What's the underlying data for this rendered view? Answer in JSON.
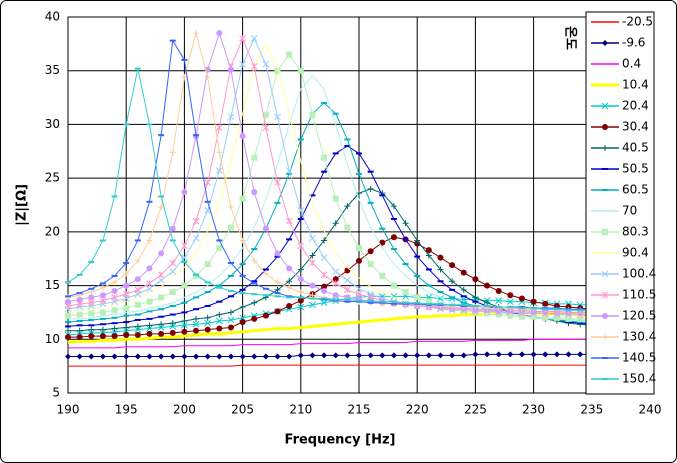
{
  "chart_data": {
    "type": "line",
    "xlabel": "Frequency [Hz]",
    "ylabel": "|Z|[Ω]",
    "legend_title": "온도",
    "legend_position": "right",
    "grid": true,
    "xlim": [
      190,
      240
    ],
    "xticks": [
      190,
      195,
      200,
      205,
      210,
      215,
      220,
      225,
      230,
      235,
      240
    ],
    "ylim": [
      5,
      40
    ],
    "yticks": [
      5,
      10,
      15,
      20,
      25,
      30,
      35,
      40
    ],
    "x": [
      190,
      191,
      192,
      193,
      194,
      195,
      196,
      197,
      198,
      199,
      200,
      201,
      202,
      203,
      204,
      205,
      206,
      207,
      208,
      209,
      210,
      211,
      212,
      213,
      214,
      215,
      216,
      217,
      218,
      219,
      220,
      221,
      222,
      223,
      224,
      225,
      226,
      227,
      228,
      229,
      230,
      231,
      232,
      233,
      234,
      235
    ],
    "series": [
      {
        "name": "-20.5",
        "color": "#ff0000",
        "marker": "none",
        "values": [
          7.5,
          7.5,
          7.5,
          7.5,
          7.5,
          7.5,
          7.5,
          7.5,
          7.5,
          7.5,
          7.5,
          7.5,
          7.5,
          7.5,
          7.5,
          7.6,
          7.6,
          7.6,
          7.6,
          7.6,
          7.6,
          7.6,
          7.6,
          7.6,
          7.6,
          7.6,
          7.6,
          7.6,
          7.6,
          7.6,
          7.6,
          7.6,
          7.6,
          7.6,
          7.6,
          7.6,
          7.6,
          7.6,
          7.6,
          7.6,
          7.6,
          7.6,
          7.6,
          7.6,
          7.6,
          7.6
        ]
      },
      {
        "name": "-9.6",
        "color": "#000080",
        "marker": "diamond",
        "values": [
          8.4,
          8.4,
          8.4,
          8.4,
          8.4,
          8.4,
          8.4,
          8.4,
          8.4,
          8.4,
          8.4,
          8.4,
          8.4,
          8.4,
          8.4,
          8.4,
          8.4,
          8.4,
          8.4,
          8.4,
          8.5,
          8.5,
          8.5,
          8.5,
          8.5,
          8.5,
          8.5,
          8.5,
          8.5,
          8.5,
          8.5,
          8.5,
          8.5,
          8.5,
          8.5,
          8.6,
          8.6,
          8.6,
          8.6,
          8.6,
          8.6,
          8.6,
          8.6,
          8.6,
          8.6,
          8.6
        ]
      },
      {
        "name": "0.4",
        "color": "#ff00ff",
        "marker": "none",
        "values": [
          9.2,
          9.2,
          9.2,
          9.2,
          9.2,
          9.3,
          9.3,
          9.3,
          9.3,
          9.3,
          9.4,
          9.4,
          9.4,
          9.4,
          9.4,
          9.5,
          9.5,
          9.5,
          9.5,
          9.5,
          9.6,
          9.6,
          9.6,
          9.6,
          9.6,
          9.7,
          9.7,
          9.7,
          9.7,
          9.7,
          9.8,
          9.8,
          9.8,
          9.8,
          9.8,
          9.9,
          9.9,
          9.9,
          9.9,
          9.9,
          10.0,
          10.0,
          10.0,
          10.0,
          10.0,
          10.0
        ]
      },
      {
        "name": "10.4",
        "color": "#ffff00",
        "marker": "none",
        "width": 3,
        "values": [
          9.7,
          9.8,
          9.8,
          9.9,
          9.9,
          10.0,
          10.0,
          10.1,
          10.2,
          10.2,
          10.3,
          10.4,
          10.5,
          10.5,
          10.6,
          10.7,
          10.8,
          10.9,
          11.0,
          11.0,
          11.1,
          11.2,
          11.3,
          11.4,
          11.5,
          11.6,
          11.7,
          11.8,
          11.9,
          12.0,
          12.1,
          12.1,
          12.2,
          12.2,
          12.3,
          12.3,
          12.4,
          12.4,
          12.4,
          12.5,
          12.5,
          12.4,
          12.4,
          12.4,
          12.3,
          12.3
        ]
      },
      {
        "name": "20.4",
        "color": "#00cccc",
        "marker": "x",
        "values": [
          10.4,
          10.5,
          10.6,
          10.6,
          10.7,
          10.8,
          10.9,
          11.0,
          11.1,
          11.2,
          11.3,
          11.4,
          11.5,
          11.7,
          11.8,
          12.0,
          12.2,
          12.4,
          12.6,
          12.8,
          13.0,
          13.2,
          13.4,
          13.6,
          13.8,
          13.9,
          14.0,
          14.0,
          14.0,
          14.0,
          13.9,
          13.9,
          13.8,
          13.8,
          13.7,
          13.7,
          13.6,
          13.6,
          13.5,
          13.5,
          13.4,
          13.4,
          13.3,
          13.3,
          13.2,
          13.2
        ]
      },
      {
        "name": "30.4",
        "color": "#800000",
        "marker": "circle",
        "values": [
          10.2,
          10.2,
          10.3,
          10.3,
          10.3,
          10.4,
          10.4,
          10.5,
          10.5,
          10.6,
          10.7,
          10.8,
          10.9,
          11.0,
          11.1,
          11.6,
          11.9,
          12.2,
          12.6,
          13.1,
          13.6,
          14.2,
          14.9,
          15.6,
          16.4,
          17.3,
          18.2,
          19.0,
          19.5,
          19.3,
          18.9,
          18.3,
          17.6,
          16.9,
          16.2,
          15.6,
          15.0,
          14.5,
          14.1,
          13.8,
          13.5,
          13.3,
          13.1,
          13.0,
          12.9,
          12.8
        ]
      },
      {
        "name": "40.5",
        "color": "#006666",
        "marker": "plus",
        "values": [
          10.8,
          10.8,
          10.9,
          10.9,
          11.0,
          11.1,
          11.2,
          11.3,
          11.4,
          11.5,
          11.7,
          11.9,
          12.0,
          12.3,
          12.5,
          13.0,
          13.4,
          13.9,
          14.6,
          15.4,
          16.5,
          17.8,
          19.2,
          20.8,
          22.4,
          23.6,
          24.0,
          23.6,
          22.4,
          20.8,
          19.2,
          17.8,
          16.5,
          15.4,
          14.6,
          13.9,
          13.4,
          13.0,
          12.5,
          12.3,
          12.0,
          11.9,
          11.7,
          11.5,
          11.4,
          11.3
        ]
      },
      {
        "name": "50.5",
        "color": "#0000cc",
        "marker": "dash",
        "values": [
          11.2,
          11.3,
          11.3,
          11.4,
          11.5,
          11.6,
          11.8,
          11.9,
          12.1,
          12.3,
          12.5,
          12.8,
          13.1,
          13.5,
          14.0,
          14.6,
          15.4,
          16.5,
          17.7,
          19.3,
          21.2,
          23.4,
          25.6,
          27.3,
          28.0,
          27.3,
          25.6,
          23.4,
          21.2,
          19.3,
          17.7,
          16.5,
          15.4,
          14.6,
          14.0,
          13.5,
          13.1,
          12.8,
          12.5,
          12.3,
          12.1,
          11.9,
          11.8,
          11.6,
          11.5,
          11.4
        ]
      },
      {
        "name": "60.5",
        "color": "#00b0c0",
        "marker": "dash",
        "values": [
          11.6,
          11.7,
          11.8,
          11.9,
          12.0,
          12.2,
          12.3,
          12.6,
          12.8,
          13.1,
          13.4,
          13.9,
          14.4,
          15.0,
          15.9,
          17.0,
          18.4,
          20.3,
          22.7,
          25.4,
          28.6,
          31.0,
          32.0,
          31.0,
          28.6,
          25.4,
          22.7,
          20.3,
          18.4,
          17.0,
          15.9,
          15.0,
          14.4,
          13.9,
          13.4,
          13.1,
          12.8,
          12.6,
          12.3,
          12.2,
          12.0,
          11.9,
          11.8,
          11.7,
          11.6,
          11.6
        ]
      },
      {
        "name": "70",
        "color": "#b0eeee",
        "marker": "none",
        "values": [
          11.9,
          11.9,
          12.0,
          12.2,
          12.3,
          12.5,
          12.6,
          12.9,
          13.1,
          13.4,
          13.9,
          14.4,
          15.0,
          15.9,
          17.0,
          18.5,
          20.4,
          23.0,
          26.3,
          30.0,
          33.3,
          34.5,
          33.3,
          30.0,
          26.3,
          23.0,
          20.4,
          18.5,
          17.0,
          15.9,
          15.0,
          14.4,
          13.9,
          13.4,
          13.1,
          12.9,
          12.6,
          12.5,
          12.3,
          12.2,
          12.0,
          11.9,
          11.9,
          11.8,
          11.8,
          11.7
        ]
      },
      {
        "name": "80.3",
        "color": "#b8f0b8",
        "marker": "square",
        "values": [
          12.2,
          12.3,
          12.4,
          12.5,
          12.7,
          12.9,
          13.2,
          13.5,
          13.9,
          14.4,
          15.0,
          15.9,
          17.0,
          18.5,
          20.4,
          23.1,
          26.9,
          30.9,
          35.0,
          36.5,
          35.0,
          30.9,
          26.9,
          23.1,
          20.4,
          18.5,
          17.0,
          15.9,
          15.0,
          14.4,
          13.9,
          13.5,
          13.2,
          12.9,
          12.7,
          12.5,
          12.4,
          12.3,
          12.2,
          12.1,
          12.1,
          12.0,
          12.0,
          11.9,
          11.9,
          11.9
        ]
      },
      {
        "name": "90.4",
        "color": "#ffff99",
        "marker": "none",
        "values": [
          12.6,
          12.7,
          12.9,
          13.0,
          13.3,
          13.5,
          13.9,
          14.4,
          14.9,
          15.7,
          16.7,
          18.0,
          20.1,
          22.7,
          26.6,
          31.0,
          35.4,
          37.5,
          35.4,
          31.0,
          26.6,
          22.7,
          20.1,
          18.0,
          16.7,
          15.7,
          14.9,
          14.4,
          13.9,
          13.5,
          13.3,
          13.0,
          12.9,
          12.7,
          12.6,
          12.5,
          12.4,
          12.4,
          12.3,
          12.3,
          12.2,
          12.2,
          12.2,
          12.1,
          12.1,
          12.1
        ]
      },
      {
        "name": "100.4",
        "color": "#99ccff",
        "marker": "x",
        "values": [
          12.8,
          13.0,
          13.1,
          13.3,
          13.5,
          13.8,
          14.2,
          14.7,
          15.5,
          16.3,
          17.6,
          19.4,
          22.0,
          25.7,
          30.7,
          35.6,
          38.0,
          35.6,
          30.7,
          25.7,
          22.0,
          19.4,
          17.6,
          16.3,
          15.5,
          14.7,
          14.2,
          13.8,
          13.5,
          13.3,
          13.1,
          13.0,
          12.8,
          12.7,
          12.7,
          12.6,
          12.6,
          12.5,
          12.5,
          12.4,
          12.4,
          12.4,
          12.3,
          12.3,
          12.3,
          12.2
        ]
      },
      {
        "name": "110.5",
        "color": "#ff99cc",
        "marker": "star",
        "values": [
          13.1,
          13.3,
          13.4,
          13.6,
          13.9,
          14.2,
          14.6,
          15.2,
          16.0,
          17.1,
          18.7,
          21.0,
          24.6,
          29.7,
          35.4,
          38.0,
          35.4,
          29.7,
          24.6,
          21.0,
          18.7,
          17.1,
          16.0,
          15.2,
          14.6,
          14.2,
          13.9,
          13.6,
          13.4,
          13.3,
          13.1,
          13.0,
          12.9,
          12.8,
          12.8,
          12.7,
          12.7,
          12.6,
          12.6,
          12.5,
          12.5,
          12.4,
          12.4,
          12.4,
          12.3,
          12.3
        ]
      },
      {
        "name": "120.5",
        "color": "#cc99ff",
        "marker": "circle",
        "values": [
          13.5,
          13.7,
          13.9,
          14.1,
          14.5,
          15.0,
          15.6,
          16.6,
          18.0,
          20.3,
          23.7,
          28.9,
          35.1,
          38.5,
          35.1,
          28.9,
          23.7,
          20.3,
          18.0,
          16.6,
          15.6,
          15.0,
          14.5,
          14.1,
          13.9,
          13.7,
          13.5,
          13.4,
          13.3,
          13.2,
          13.1,
          13.0,
          13.0,
          12.9,
          12.9,
          12.8,
          12.8,
          12.7,
          12.7,
          12.7,
          12.6,
          12.6,
          12.6,
          12.5,
          12.5,
          12.5
        ]
      },
      {
        "name": "130.4",
        "color": "#ffcc99",
        "marker": "plus",
        "values": [
          13.9,
          14.1,
          14.4,
          14.8,
          15.3,
          16.1,
          17.3,
          19.2,
          22.3,
          27.4,
          34.4,
          38.5,
          34.4,
          27.4,
          22.3,
          19.2,
          17.3,
          16.1,
          15.3,
          14.8,
          14.4,
          14.1,
          13.9,
          13.7,
          13.6,
          13.5,
          13.4,
          13.3,
          13.3,
          13.2,
          13.2,
          13.1,
          13.1,
          13.0,
          13.0,
          13.0,
          12.9,
          12.9,
          12.9,
          12.8,
          12.8,
          12.8,
          12.7,
          12.7,
          12.7,
          12.6
        ]
      },
      {
        "name": "140.5",
        "color": "#3366ff",
        "marker": "dash",
        "values": [
          14.0,
          14.3,
          14.7,
          15.2,
          15.9,
          17.1,
          19.2,
          22.8,
          29.0,
          37.8,
          36.0,
          29.0,
          22.8,
          19.2,
          17.1,
          15.9,
          15.2,
          14.7,
          14.3,
          14.0,
          13.9,
          13.8,
          13.7,
          13.6,
          13.5,
          13.5,
          13.4,
          13.4,
          13.3,
          13.3,
          13.3,
          13.2,
          13.2,
          13.2,
          13.1,
          13.1,
          13.1,
          13.0,
          13.0,
          13.0,
          12.9,
          12.9,
          12.9,
          12.8,
          12.8,
          12.8
        ]
      },
      {
        "name": "150.4",
        "color": "#33cccc",
        "marker": "dash",
        "values": [
          15.3,
          16.0,
          17.2,
          19.2,
          23.3,
          30.0,
          35.2,
          30.0,
          23.3,
          19.2,
          17.2,
          16.0,
          15.3,
          14.8,
          14.5,
          14.3,
          14.2,
          14.1,
          14.0,
          13.9,
          13.9,
          13.8,
          13.8,
          13.7,
          13.7,
          13.6,
          13.6,
          13.5,
          13.5,
          13.4,
          13.4,
          13.3,
          13.3,
          13.2,
          13.2,
          13.1,
          13.1,
          13.0,
          13.0,
          12.9,
          12.9,
          12.8,
          12.8,
          12.7,
          12.7,
          12.6
        ]
      }
    ]
  }
}
